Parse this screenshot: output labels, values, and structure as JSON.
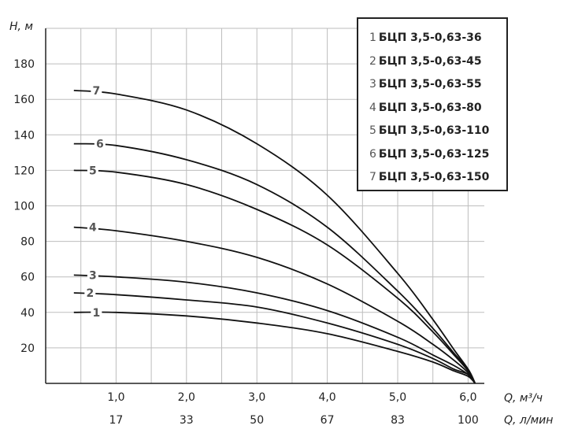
{
  "chart_data": {
    "type": "line",
    "title": "",
    "ylabel": "H, м",
    "xlabel": "Q, м³/ч",
    "xlabel2": "Q, л/мин",
    "xlim": [
      0,
      6.2
    ],
    "ylim": [
      0,
      200
    ],
    "grid": true,
    "y_ticks": [
      "20",
      "40",
      "60",
      "80",
      "100",
      "120",
      "140",
      "160",
      "180"
    ],
    "x_ticks": [
      {
        "x": 1.0,
        "label": "1,0",
        "label2": "17"
      },
      {
        "x": 2.0,
        "label": "2,0",
        "label2": "33"
      },
      {
        "x": 3.0,
        "label": "3,0",
        "label2": "50"
      },
      {
        "x": 4.0,
        "label": "4,0",
        "label2": "67"
      },
      {
        "x": 5.0,
        "label": "5,0",
        "label2": "83"
      },
      {
        "x": 6.0,
        "label": "6,0",
        "label2": "100"
      }
    ],
    "series": [
      {
        "label": "1",
        "name": "БЦП 3,5-0,63-36",
        "x": [
          0.4,
          1.0,
          2.0,
          3.0,
          4.0,
          5.0,
          5.5,
          5.8,
          6.0,
          6.1
        ],
        "y": [
          40,
          40,
          38,
          34,
          28,
          18,
          12,
          7,
          4,
          0
        ]
      },
      {
        "label": "2",
        "name": "БЦП 3,5-0,63-45",
        "x": [
          0.4,
          1.0,
          2.0,
          3.0,
          4.0,
          5.0,
          5.5,
          5.8,
          6.0,
          6.1
        ],
        "y": [
          51,
          50,
          47,
          43,
          34,
          22,
          14,
          8,
          5,
          0
        ]
      },
      {
        "label": "3",
        "name": "БЦП 3,5-0,63-55",
        "x": [
          0.4,
          1.0,
          2.0,
          3.0,
          4.0,
          5.0,
          5.5,
          5.8,
          6.0,
          6.1
        ],
        "y": [
          61,
          60,
          57,
          51,
          41,
          26,
          16,
          10,
          5,
          0
        ]
      },
      {
        "label": "4",
        "name": "БЦП 3,5-0,63-80",
        "x": [
          0.4,
          1.0,
          2.0,
          3.0,
          4.0,
          5.0,
          5.5,
          5.8,
          6.0,
          6.1
        ],
        "y": [
          88,
          86,
          80,
          71,
          56,
          35,
          22,
          13,
          6,
          0
        ]
      },
      {
        "label": "5",
        "name": "БЦП 3,5-0,63-110",
        "x": [
          0.4,
          1.0,
          2.0,
          3.0,
          4.0,
          5.0,
          5.5,
          5.8,
          6.0,
          6.1
        ],
        "y": [
          120,
          119,
          112,
          98,
          78,
          48,
          29,
          16,
          7,
          0
        ]
      },
      {
        "label": "6",
        "name": "БЦП 3,5-0,63-125",
        "x": [
          0.4,
          1.0,
          2.0,
          3.0,
          4.0,
          5.0,
          5.5,
          5.8,
          6.0,
          6.1
        ],
        "y": [
          135,
          134,
          126,
          112,
          88,
          52,
          31,
          17,
          8,
          0
        ]
      },
      {
        "label": "7",
        "name": "БЦП 3,5-0,63-150",
        "x": [
          0.4,
          1.0,
          2.0,
          3.0,
          4.0,
          5.0,
          5.5,
          5.8,
          6.0,
          6.1
        ],
        "y": [
          165,
          163,
          154,
          135,
          106,
          62,
          36,
          19,
          8,
          0
        ]
      }
    ],
    "legend_position": "top-right"
  }
}
